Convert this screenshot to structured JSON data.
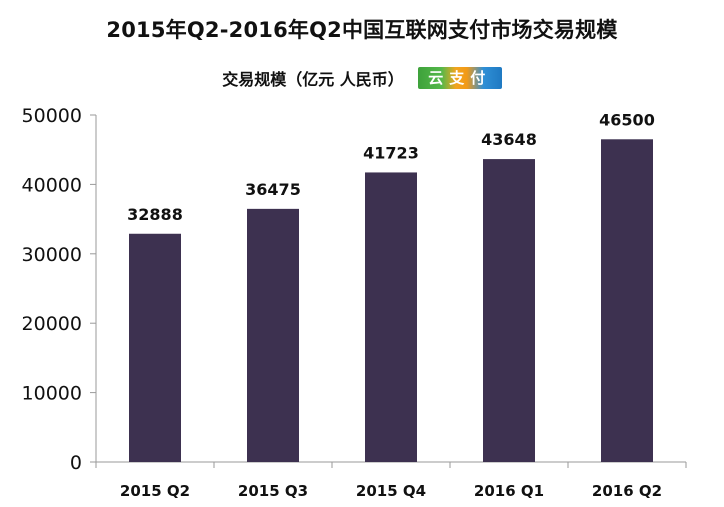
{
  "title": "2015年Q2-2016年Q2中国互联网支付市场交易规模",
  "subtitle": "交易规模（亿元 人民币）",
  "logo": "云支付",
  "colors": {
    "bar": "#3d3150",
    "axis": "#9a9a9a",
    "text": "#111111"
  },
  "chart_data": {
    "type": "bar",
    "categories": [
      "2015 Q2",
      "2015 Q3",
      "2015 Q4",
      "2016 Q1",
      "2016 Q2"
    ],
    "values": [
      32888,
      36475,
      41723,
      43648,
      46500
    ],
    "data_labels": [
      "32888",
      "36475",
      "41723",
      "43648",
      "46500"
    ],
    "ylim": [
      0,
      50000
    ],
    "yticks": [
      0,
      10000,
      20000,
      30000,
      40000,
      50000
    ],
    "ytick_labels": [
      "0",
      "10000",
      "20000",
      "30000",
      "40000",
      "50000"
    ],
    "grid": false,
    "legend": "none"
  }
}
